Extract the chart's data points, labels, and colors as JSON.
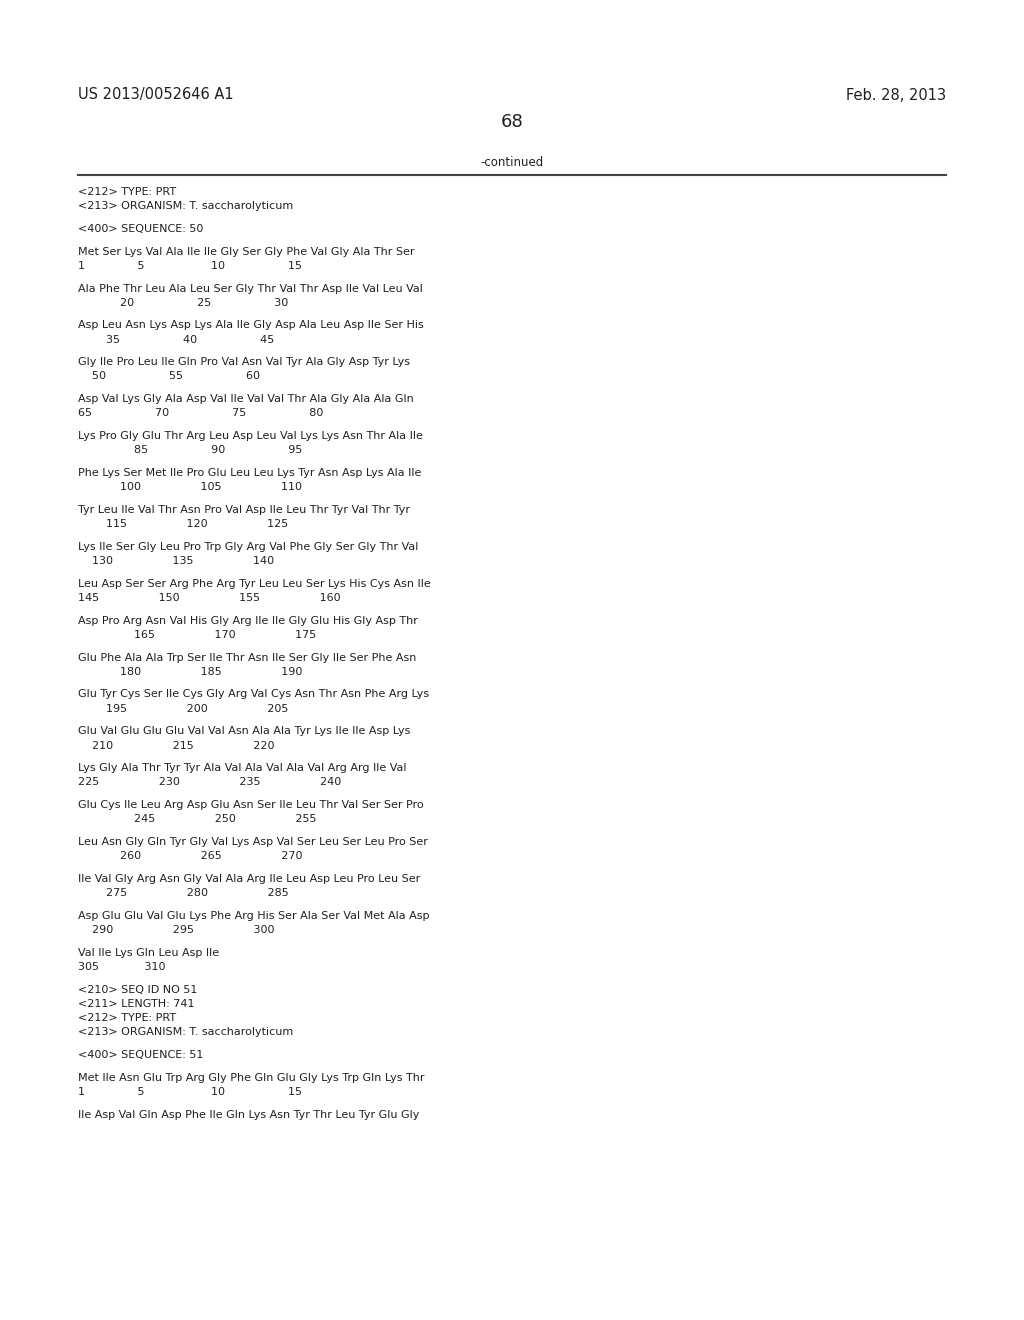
{
  "header_left": "US 2013/0052646 A1",
  "header_right": "Feb. 28, 2013",
  "page_number": "68",
  "continued_label": "-continued",
  "background_color": "#ffffff",
  "text_color": "#231f20",
  "mono_font": "Courier New",
  "sans_font": "DejaVu Sans",
  "header_font_size": 10.5,
  "page_num_font_size": 13,
  "content_font_size": 8.0,
  "lines": [
    "<212> TYPE: PRT",
    "<213> ORGANISM: T. saccharolyticum",
    "",
    "<400> SEQUENCE: 50",
    "",
    "Met Ser Lys Val Ala Ile Ile Gly Ser Gly Phe Val Gly Ala Thr Ser",
    "1               5                   10                  15",
    "",
    "Ala Phe Thr Leu Ala Leu Ser Gly Thr Val Thr Asp Ile Val Leu Val",
    "            20                  25                  30",
    "",
    "Asp Leu Asn Lys Asp Lys Ala Ile Gly Asp Ala Leu Asp Ile Ser His",
    "        35                  40                  45",
    "",
    "Gly Ile Pro Leu Ile Gln Pro Val Asn Val Tyr Ala Gly Asp Tyr Lys",
    "    50                  55                  60",
    "",
    "Asp Val Lys Gly Ala Asp Val Ile Val Val Thr Ala Gly Ala Ala Gln",
    "65                  70                  75                  80",
    "",
    "Lys Pro Gly Glu Thr Arg Leu Asp Leu Val Lys Lys Asn Thr Ala Ile",
    "                85                  90                  95",
    "",
    "Phe Lys Ser Met Ile Pro Glu Leu Leu Lys Tyr Asn Asp Lys Ala Ile",
    "            100                 105                 110",
    "",
    "Tyr Leu Ile Val Thr Asn Pro Val Asp Ile Leu Thr Tyr Val Thr Tyr",
    "        115                 120                 125",
    "",
    "Lys Ile Ser Gly Leu Pro Trp Gly Arg Val Phe Gly Ser Gly Thr Val",
    "    130                 135                 140",
    "",
    "Leu Asp Ser Ser Arg Phe Arg Tyr Leu Leu Ser Lys His Cys Asn Ile",
    "145                 150                 155                 160",
    "",
    "Asp Pro Arg Asn Val His Gly Arg Ile Ile Gly Glu His Gly Asp Thr",
    "                165                 170                 175",
    "",
    "Glu Phe Ala Ala Trp Ser Ile Thr Asn Ile Ser Gly Ile Ser Phe Asn",
    "            180                 185                 190",
    "",
    "Glu Tyr Cys Ser Ile Cys Gly Arg Val Cys Asn Thr Asn Phe Arg Lys",
    "        195                 200                 205",
    "",
    "Glu Val Glu Glu Glu Val Val Asn Ala Ala Tyr Lys Ile Ile Asp Lys",
    "    210                 215                 220",
    "",
    "Lys Gly Ala Thr Tyr Tyr Ala Val Ala Val Ala Val Arg Arg Ile Val",
    "225                 230                 235                 240",
    "",
    "Glu Cys Ile Leu Arg Asp Glu Asn Ser Ile Leu Thr Val Ser Ser Pro",
    "                245                 250                 255",
    "",
    "Leu Asn Gly Gln Tyr Gly Val Lys Asp Val Ser Leu Ser Leu Pro Ser",
    "            260                 265                 270",
    "",
    "Ile Val Gly Arg Asn Gly Val Ala Arg Ile Leu Asp Leu Pro Leu Ser",
    "        275                 280                 285",
    "",
    "Asp Glu Glu Val Glu Lys Phe Arg His Ser Ala Ser Val Met Ala Asp",
    "    290                 295                 300",
    "",
    "Val Ile Lys Gln Leu Asp Ile",
    "305             310",
    "",
    "<210> SEQ ID NO 51",
    "<211> LENGTH: 741",
    "<212> TYPE: PRT",
    "<213> ORGANISM: T. saccharolyticum",
    "",
    "<400> SEQUENCE: 51",
    "",
    "Met Ile Asn Glu Trp Arg Gly Phe Gln Glu Gly Lys Trp Gln Lys Thr",
    "1               5                   10                  15",
    "",
    "Ile Asp Val Gln Asp Phe Ile Gln Lys Asn Tyr Thr Leu Tyr Glu Gly"
  ]
}
